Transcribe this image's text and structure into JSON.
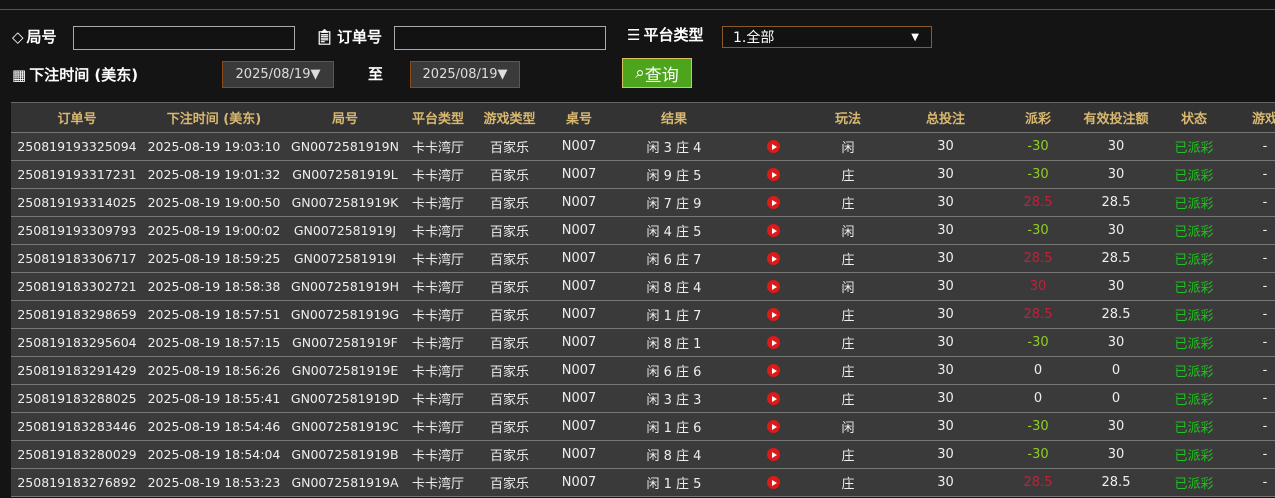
{
  "filters": {
    "round_label": "局号",
    "order_label": "订单号",
    "platform_label": "平台类型",
    "platform_value": "1.全部",
    "bettime_label": "下注时间 (美东)",
    "date_from": "2025/08/19▼",
    "to_label": "至",
    "date_to": "2025/08/19▼",
    "query_label": "查询"
  },
  "table": {
    "headers": [
      "订单号",
      "下注时间 (美东)",
      "局号",
      "平台类型",
      "游戏类型",
      "桌号",
      "结果",
      "",
      "玩法",
      "总投注",
      "派彩",
      "有效投注额",
      "状态",
      "游戏"
    ],
    "colors": {
      "win": "#c0203a",
      "loss": "#8fd020",
      "status": "#20c020"
    },
    "rows": [
      [
        "250819193325094",
        "2025-08-19 19:03:10",
        "GN0072581919N",
        "卡卡湾厅",
        "百家乐",
        "N007",
        "闲 3 庄 4",
        "闲",
        "30",
        "-30",
        "30",
        "已派彩",
        "-"
      ],
      [
        "250819193317231",
        "2025-08-19 19:01:32",
        "GN0072581919L",
        "卡卡湾厅",
        "百家乐",
        "N007",
        "闲 9 庄 5",
        "庄",
        "30",
        "-30",
        "30",
        "已派彩",
        "-"
      ],
      [
        "250819193314025",
        "2025-08-19 19:00:50",
        "GN0072581919K",
        "卡卡湾厅",
        "百家乐",
        "N007",
        "闲 7 庄 9",
        "庄",
        "30",
        "28.5",
        "28.5",
        "已派彩",
        "-"
      ],
      [
        "250819193309793",
        "2025-08-19 19:00:02",
        "GN0072581919J",
        "卡卡湾厅",
        "百家乐",
        "N007",
        "闲 4 庄 5",
        "闲",
        "30",
        "-30",
        "30",
        "已派彩",
        "-"
      ],
      [
        "250819183306717",
        "2025-08-19 18:59:25",
        "GN0072581919I",
        "卡卡湾厅",
        "百家乐",
        "N007",
        "闲 6 庄 7",
        "庄",
        "30",
        "28.5",
        "28.5",
        "已派彩",
        "-"
      ],
      [
        "250819183302721",
        "2025-08-19 18:58:38",
        "GN0072581919H",
        "卡卡湾厅",
        "百家乐",
        "N007",
        "闲 8 庄 4",
        "闲",
        "30",
        "30",
        "30",
        "已派彩",
        "-"
      ],
      [
        "250819183298659",
        "2025-08-19 18:57:51",
        "GN0072581919G",
        "卡卡湾厅",
        "百家乐",
        "N007",
        "闲 1 庄 7",
        "庄",
        "30",
        "28.5",
        "28.5",
        "已派彩",
        "-"
      ],
      [
        "250819183295604",
        "2025-08-19 18:57:15",
        "GN0072581919F",
        "卡卡湾厅",
        "百家乐",
        "N007",
        "闲 8 庄 1",
        "庄",
        "30",
        "-30",
        "30",
        "已派彩",
        "-"
      ],
      [
        "250819183291429",
        "2025-08-19 18:56:26",
        "GN0072581919E",
        "卡卡湾厅",
        "百家乐",
        "N007",
        "闲 6 庄 6",
        "庄",
        "30",
        "0",
        "0",
        "已派彩",
        "-"
      ],
      [
        "250819183288025",
        "2025-08-19 18:55:41",
        "GN0072581919D",
        "卡卡湾厅",
        "百家乐",
        "N007",
        "闲 3 庄 3",
        "庄",
        "30",
        "0",
        "0",
        "已派彩",
        "-"
      ],
      [
        "250819183283446",
        "2025-08-19 18:54:46",
        "GN0072581919C",
        "卡卡湾厅",
        "百家乐",
        "N007",
        "闲 1 庄 6",
        "闲",
        "30",
        "-30",
        "30",
        "已派彩",
        "-"
      ],
      [
        "250819183280029",
        "2025-08-19 18:54:04",
        "GN0072581919B",
        "卡卡湾厅",
        "百家乐",
        "N007",
        "闲 8 庄 4",
        "庄",
        "30",
        "-30",
        "30",
        "已派彩",
        "-"
      ],
      [
        "250819183276892",
        "2025-08-19 18:53:23",
        "GN0072581919A",
        "卡卡湾厅",
        "百家乐",
        "N007",
        "闲 1 庄 5",
        "庄",
        "30",
        "28.5",
        "28.5",
        "已派彩",
        "-"
      ]
    ]
  }
}
